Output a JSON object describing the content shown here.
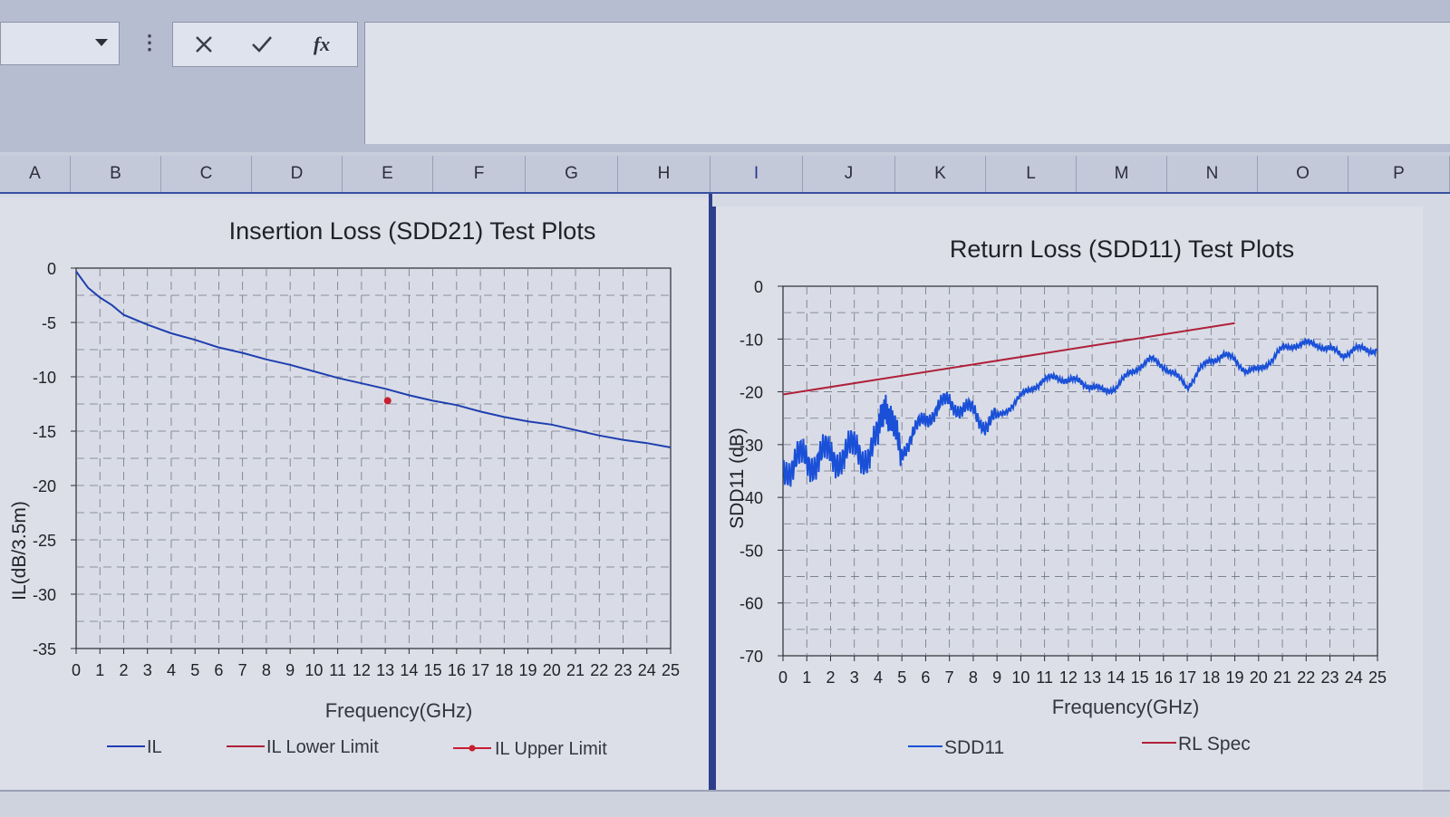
{
  "toolbar": {
    "name_box": "",
    "cancel_icon": "close-icon",
    "enter_icon": "check-icon",
    "function_label": "fx",
    "formula_value": ""
  },
  "columns": [
    "A",
    "B",
    "C",
    "D",
    "E",
    "F",
    "G",
    "H",
    "I",
    "J",
    "K",
    "L",
    "M",
    "N",
    "O",
    "P"
  ],
  "colors": {
    "il_line": "#1f3fb0",
    "il_lower": "#b0203a",
    "il_upper": "#c81e32",
    "sdd11": "#1a50d8",
    "rl_spec": "#b0203a",
    "grid": "#707585",
    "plot_bg": "#d9dce6"
  },
  "chart_data": [
    {
      "type": "line",
      "title": "Insertion Loss (SDD21) Test Plots",
      "xlabel": "Frequency(GHz)",
      "ylabel": "IL(dB/3.5m)",
      "xlim": [
        0,
        25
      ],
      "ylim": [
        -35,
        0
      ],
      "x_ticks": [
        0,
        1,
        2,
        3,
        4,
        5,
        6,
        7,
        8,
        9,
        10,
        11,
        12,
        13,
        14,
        15,
        16,
        17,
        18,
        19,
        20,
        21,
        22,
        23,
        24,
        25
      ],
      "y_ticks": [
        0,
        -5,
        -10,
        -15,
        -20,
        -25,
        -30,
        -35
      ],
      "grid": true,
      "legend_position": "bottom",
      "legend": [
        "IL",
        "IL Lower Limit",
        "IL Upper Limit"
      ],
      "series": [
        {
          "name": "IL",
          "x": [
            0,
            0.5,
            1,
            1.5,
            2,
            3,
            4,
            5,
            6,
            7,
            8,
            9,
            10,
            11,
            12,
            13,
            14,
            15,
            16,
            17,
            18,
            19,
            20,
            21,
            22,
            23,
            24,
            25
          ],
          "y": [
            -0.3,
            -1.8,
            -2.7,
            -3.4,
            -4.3,
            -5.2,
            -6.0,
            -6.6,
            -7.3,
            -7.8,
            -8.4,
            -8.9,
            -9.5,
            -10.1,
            -10.6,
            -11.1,
            -11.7,
            -12.2,
            -12.6,
            -13.2,
            -13.7,
            -14.1,
            -14.4,
            -14.9,
            -15.4,
            -15.8,
            -16.1,
            -16.5
          ]
        },
        {
          "name": "IL Upper Limit",
          "x": [
            13.1
          ],
          "y": [
            -12.2
          ]
        }
      ]
    },
    {
      "type": "line",
      "title": "Return Loss (SDD11) Test Plots",
      "xlabel": "Frequency(GHz)",
      "ylabel": "SDD11 (dB)",
      "xlim": [
        0,
        25
      ],
      "ylim": [
        -70,
        0
      ],
      "x_ticks": [
        0,
        1,
        2,
        3,
        4,
        5,
        6,
        7,
        8,
        9,
        10,
        11,
        12,
        13,
        14,
        15,
        16,
        17,
        18,
        19,
        20,
        21,
        22,
        23,
        24,
        25
      ],
      "y_ticks": [
        0,
        -10,
        -20,
        -30,
        -40,
        -50,
        -60,
        -70
      ],
      "grid": true,
      "legend_position": "bottom",
      "legend": [
        "SDD11",
        "RL Spec"
      ],
      "series": [
        {
          "name": "SDD11",
          "x": [
            0,
            0.5,
            1,
            1.5,
            2,
            2.5,
            3,
            3.5,
            4,
            4.3,
            4.6,
            5,
            5.5,
            6,
            6.5,
            7,
            7.5,
            8,
            8.5,
            9,
            9.5,
            10,
            10.5,
            11,
            11.5,
            12,
            12.5,
            13,
            13.5,
            14,
            14.5,
            15,
            15.5,
            16,
            16.5,
            17,
            17.5,
            18,
            18.5,
            19,
            19.5,
            20,
            20.5,
            21,
            21.5,
            22,
            22.5,
            23,
            23.5,
            24,
            24.5,
            25
          ],
          "y": [
            -33,
            -34,
            -33,
            -32,
            -33,
            -31,
            -32,
            -31,
            -30,
            -20,
            -28,
            -31,
            -28,
            -25,
            -23,
            -22,
            -23,
            -24,
            -26,
            -25,
            -23,
            -21,
            -19,
            -18,
            -17,
            -18,
            -18,
            -19,
            -20,
            -19,
            -17,
            -15,
            -14,
            -15,
            -17,
            -19,
            -16,
            -14,
            -13,
            -14,
            -16,
            -16,
            -14,
            -12,
            -11,
            -11,
            -11,
            -12,
            -13,
            -12,
            -12,
            -12
          ]
        },
        {
          "name": "RL Spec",
          "x": [
            0,
            19
          ],
          "y": [
            -20.5,
            -7
          ]
        }
      ]
    }
  ]
}
